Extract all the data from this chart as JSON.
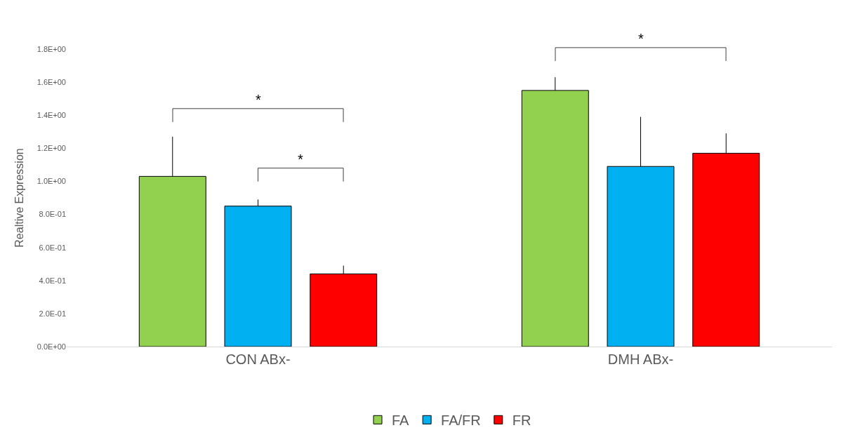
{
  "chart_data": {
    "type": "bar",
    "ylabel": "Realtive Expression",
    "categories": [
      "CON ABx-",
      "DMH ABx-"
    ],
    "series": [
      {
        "name": "FA",
        "color": "#92d050",
        "values": [
          1.03,
          1.55
        ],
        "errors": [
          [
            1.03,
            1.27
          ],
          [
            1.55,
            1.63
          ]
        ]
      },
      {
        "name": "FA/FR",
        "color": "#00b0f0",
        "values": [
          0.85,
          1.09
        ],
        "errors": [
          [
            0.85,
            0.89
          ],
          [
            1.09,
            1.39
          ]
        ]
      },
      {
        "name": "FR",
        "color": "#ff0000",
        "values": [
          0.44,
          1.17
        ],
        "errors": [
          [
            0.44,
            0.49
          ],
          [
            1.17,
            1.29
          ]
        ]
      }
    ],
    "ylim": [
      0,
      1.8
    ],
    "yticks": [
      {
        "value": 0,
        "label": "0.0E+00"
      },
      {
        "value": 0.2,
        "label": "2.0E-01"
      },
      {
        "value": 0.4,
        "label": "4.0E-01"
      },
      {
        "value": 0.6,
        "label": "6.0E-01"
      },
      {
        "value": 0.8,
        "label": "8.0E-01"
      },
      {
        "value": 1.0,
        "label": "1.0E+00"
      },
      {
        "value": 1.2,
        "label": "1.2E+00"
      },
      {
        "value": 1.4,
        "label": "1.4E+00"
      },
      {
        "value": 1.6,
        "label": "1.6E+00"
      },
      {
        "value": 1.8,
        "label": "1.8E+00"
      }
    ],
    "annotations": [
      "*",
      "*",
      "*"
    ],
    "legend": "bottom"
  }
}
